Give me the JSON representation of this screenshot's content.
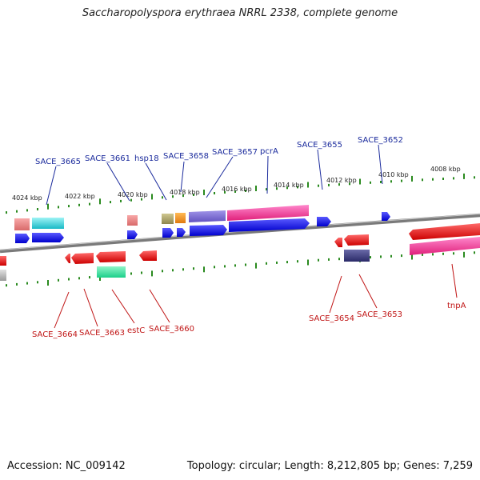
{
  "title": "Saccharopolyspora erythraea NRRL 2338, complete genome",
  "footer": {
    "accession": "Accession: NC_009142",
    "topology": "Topology: circular; Length: 8,212,805 bp; Genes: 7,259"
  },
  "kbp_labels": [
    "4024 kbp",
    "4022 kbp",
    "4020 kbp",
    "4018 kbp",
    "4016 kbp",
    "4014 kbp",
    "4012 kbp",
    "4010 kbp",
    "4008 kbp"
  ],
  "genes_upper": [
    "SACE_3665",
    "SACE_3661",
    "hsp18",
    "SACE_3658",
    "SACE_3657",
    "pcrA",
    "SACE_3655",
    "SACE_3652"
  ],
  "genes_lower": [
    "SACE_3664",
    "SACE_3663",
    "estC",
    "SACE_3660",
    "SACE_3654",
    "SACE_3653",
    "tnpA"
  ],
  "colors": {
    "forward": "#1010ee",
    "reverse": "#ee1111",
    "backbone": "#888888",
    "tick": "#2a8a1f",
    "label_blue": "#1a2a9c",
    "label_red": "#c01515"
  }
}
